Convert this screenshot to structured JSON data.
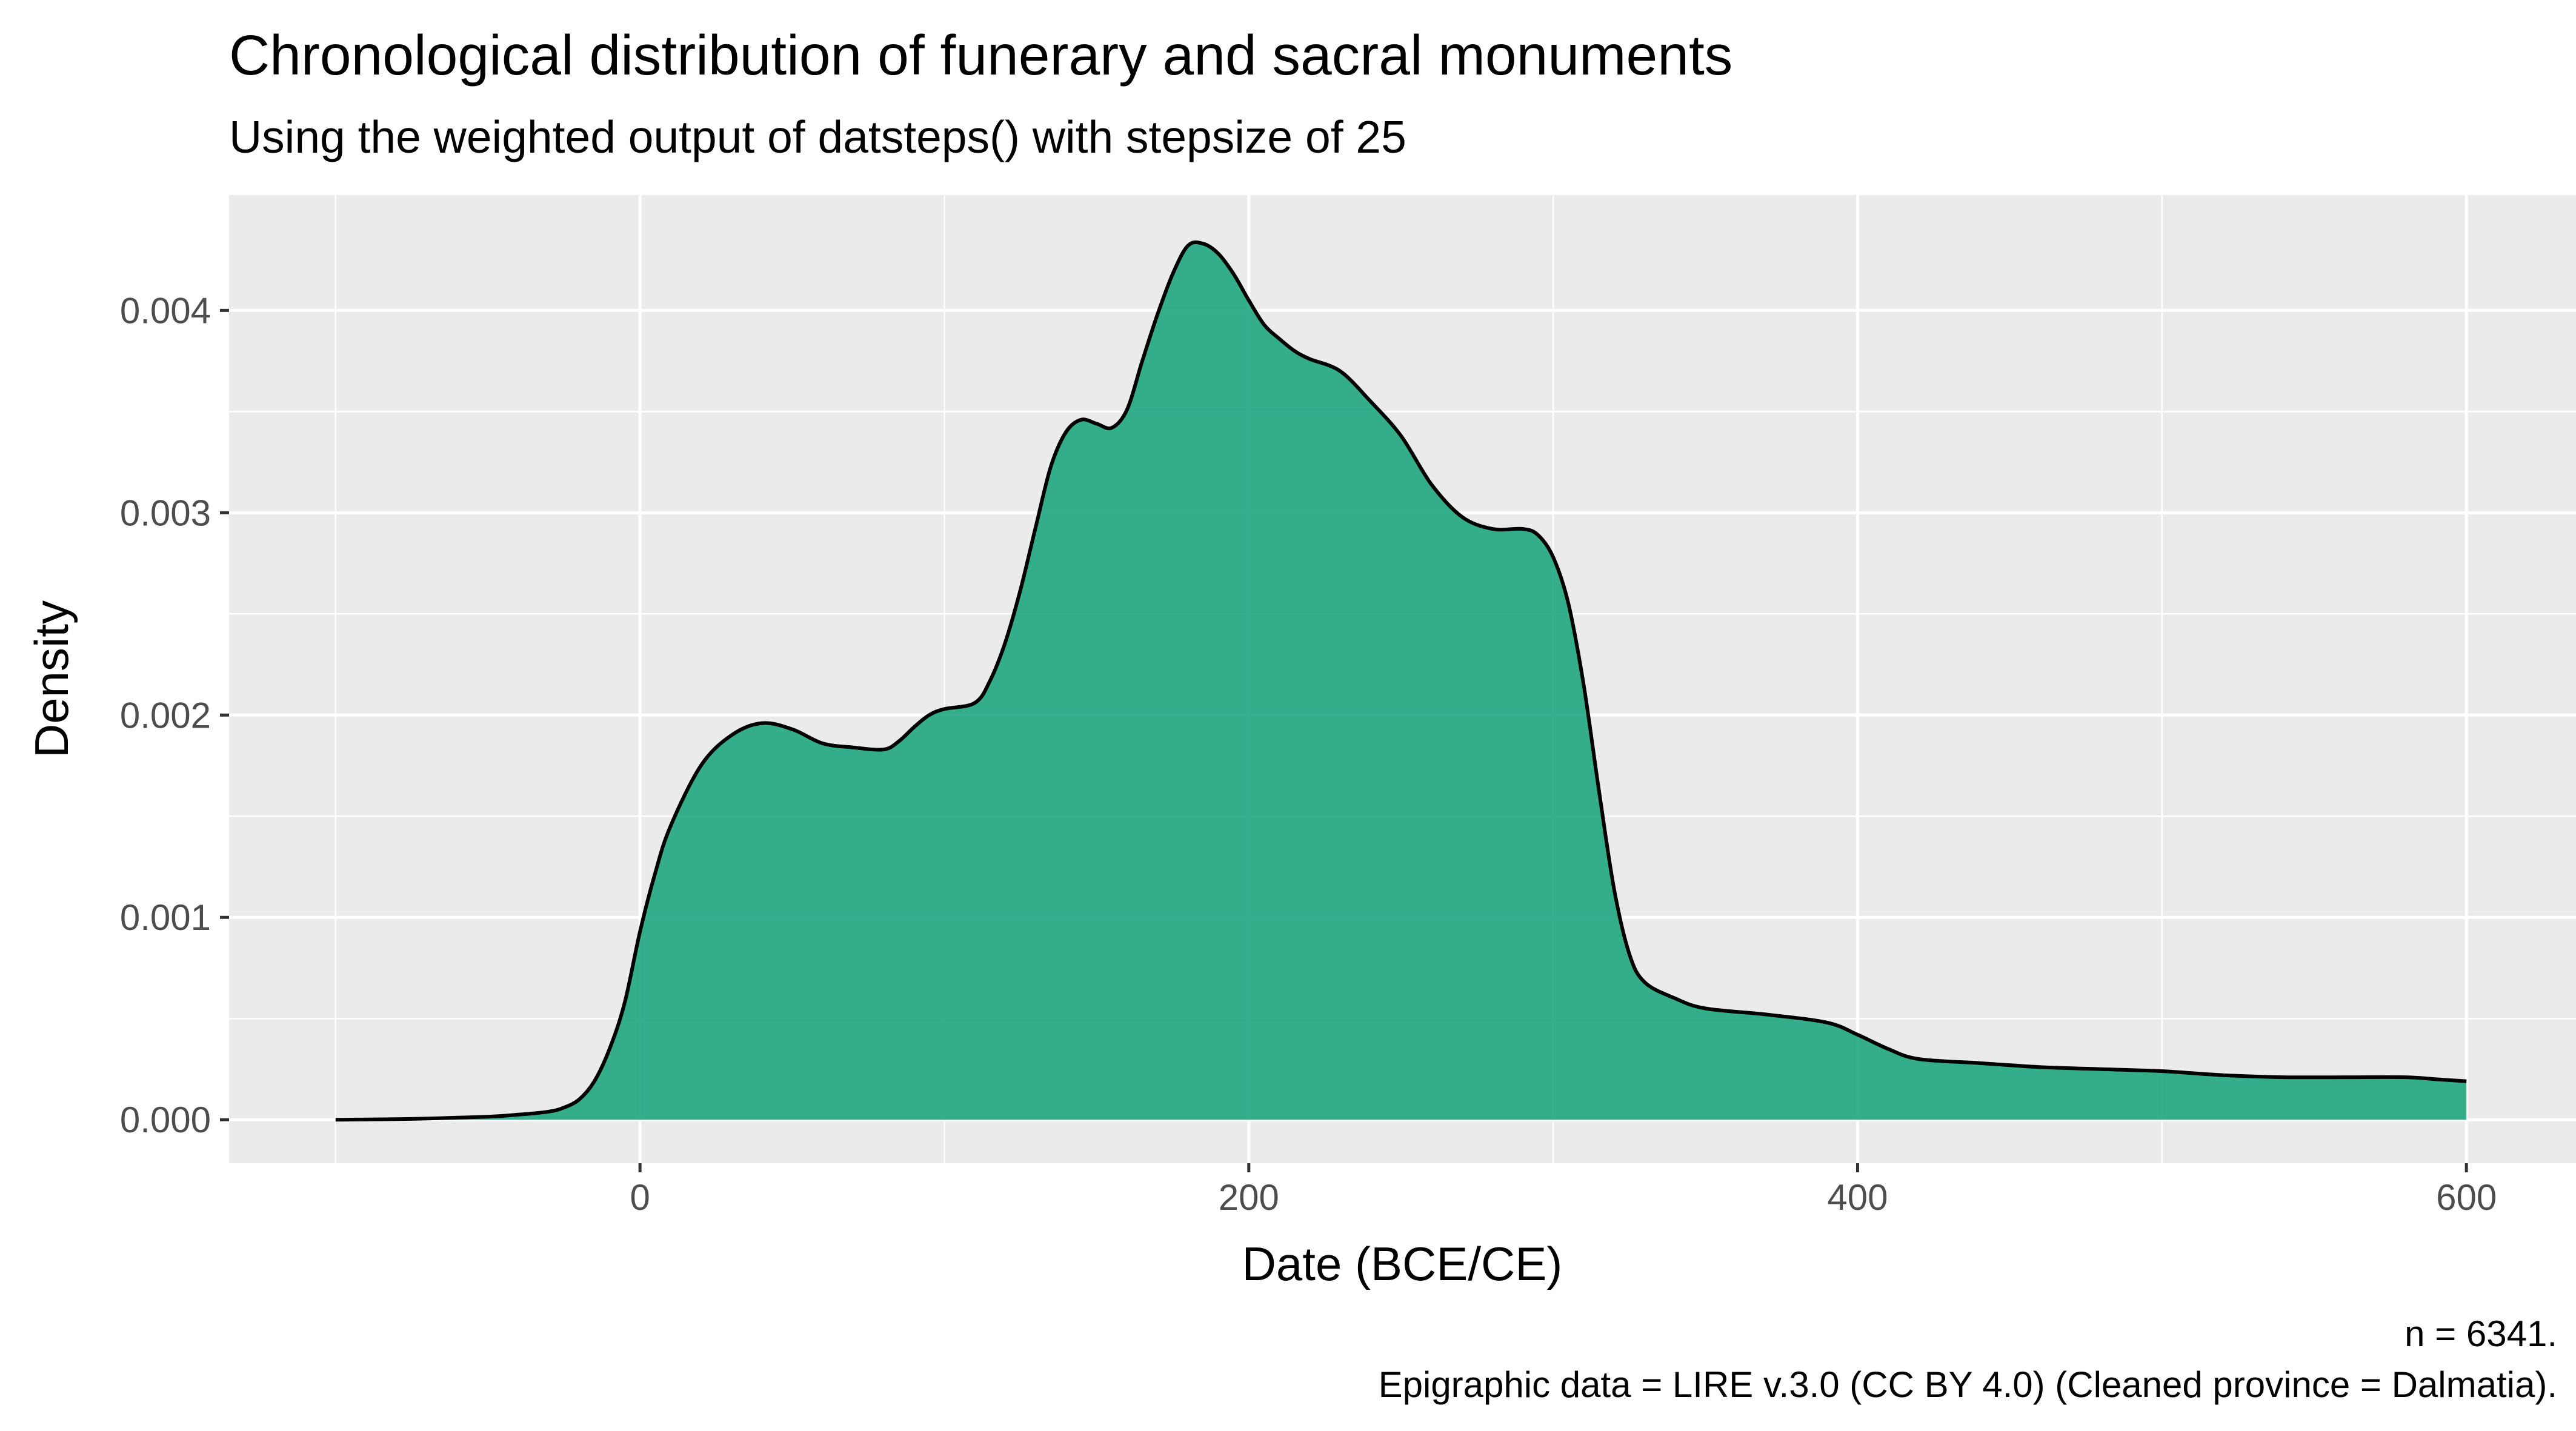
{
  "chart_data": {
    "type": "area",
    "title": "Chronological distribution of funerary and sacral monuments",
    "subtitle": "Using the weighted output of datsteps() with stepsize of 25",
    "xlabel": "Date (BCE/CE)",
    "ylabel": "Density",
    "caption_lines": [
      "n = 6341.",
      "Epigraphic data = LIRE v.3.0 (CC BY 4.0) (Cleaned province = Dalmatia)."
    ],
    "xlim": [
      -135,
      636
    ],
    "ylim": [
      -0.000215,
      0.00457
    ],
    "x_ticks": [
      0,
      200,
      400,
      600
    ],
    "x_tick_labels": [
      "0",
      "200",
      "400",
      "600"
    ],
    "x_minor_ticks": [
      -100,
      100,
      300,
      500
    ],
    "y_ticks": [
      0,
      0.001,
      0.002,
      0.003,
      0.004
    ],
    "y_tick_labels": [
      "0.000",
      "0.001",
      "0.002",
      "0.003",
      "0.004"
    ],
    "y_minor_ticks": [
      0.0005,
      0.0015,
      0.0025,
      0.0035
    ],
    "grid": true,
    "legend": "none",
    "fill_color": "#1fa67f",
    "line_color": "#000000",
    "panel_color": "#ebebeb",
    "x": [
      -100,
      -75,
      -50,
      -40,
      -30,
      -25,
      -20,
      -15,
      -10,
      -5,
      0,
      5,
      10,
      20,
      30,
      40,
      50,
      60,
      70,
      80,
      85,
      90,
      95,
      100,
      110,
      115,
      120,
      125,
      130,
      135,
      140,
      145,
      150,
      155,
      160,
      165,
      170,
      175,
      180,
      185,
      190,
      195,
      200,
      205,
      210,
      215,
      220,
      230,
      240,
      250,
      260,
      270,
      280,
      290,
      295,
      300,
      305,
      310,
      315,
      320,
      325,
      330,
      340,
      350,
      370,
      390,
      400,
      410,
      420,
      440,
      460,
      480,
      500,
      520,
      540,
      560,
      580,
      590,
      600
    ],
    "y": [
      0,
      4e-06,
      1.5e-05,
      2.5e-05,
      4e-05,
      6e-05,
      0.0001,
      0.00019,
      0.00035,
      0.00058,
      0.00093,
      0.00122,
      0.00145,
      0.00175,
      0.0019,
      0.00196,
      0.00193,
      0.00186,
      0.00184,
      0.00183,
      0.00187,
      0.00194,
      0.002,
      0.00203,
      0.00206,
      0.00217,
      0.00236,
      0.00262,
      0.00293,
      0.00323,
      0.0034,
      0.00346,
      0.00344,
      0.00342,
      0.00351,
      0.00375,
      0.00398,
      0.00418,
      0.00432,
      0.00433,
      0.00428,
      0.00418,
      0.00405,
      0.00393,
      0.00386,
      0.0038,
      0.00376,
      0.0037,
      0.00355,
      0.00338,
      0.00314,
      0.00298,
      0.00292,
      0.00292,
      0.00289,
      0.00278,
      0.00255,
      0.00215,
      0.00163,
      0.00114,
      0.00082,
      0.00068,
      0.0006,
      0.00055,
      0.00052,
      0.00048,
      0.00042,
      0.00035,
      0.0003,
      0.00028,
      0.00026,
      0.00025,
      0.00024,
      0.00022,
      0.00021,
      0.00021,
      0.00021,
      0.0002,
      0.00019
    ]
  }
}
